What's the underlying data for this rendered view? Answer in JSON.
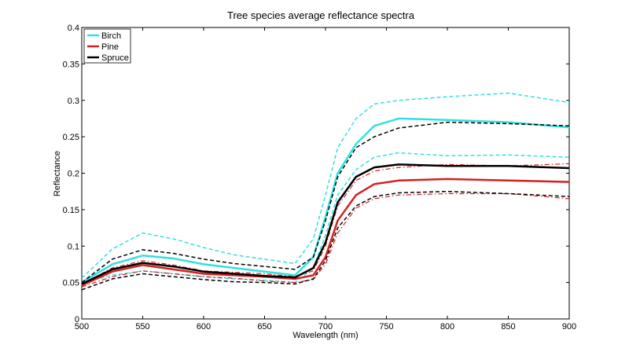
{
  "chart_data": {
    "type": "line",
    "title": "Tree species average reflectance spectra",
    "xlabel": "Wavelength (nm)",
    "ylabel": "Reflectance",
    "xlim": [
      500,
      900
    ],
    "ylim": [
      0,
      0.4
    ],
    "xticks": [
      500,
      550,
      600,
      650,
      700,
      750,
      800,
      850,
      900
    ],
    "yticks": [
      0,
      0.05,
      0.1,
      0.15,
      0.2,
      0.25,
      0.3,
      0.35,
      0.4
    ],
    "xtick_labels": [
      "500",
      "550",
      "600",
      "650",
      "700",
      "750",
      "800",
      "850",
      "900"
    ],
    "ytick_labels": [
      "0",
      "0.05",
      "0.1",
      "0.15",
      "0.2",
      "0.25",
      "0.3",
      "0.35",
      "0.4"
    ],
    "grid": false,
    "legend_position": "top-left",
    "x": [
      500,
      525,
      550,
      575,
      600,
      625,
      650,
      675,
      690,
      700,
      710,
      725,
      740,
      760,
      800,
      850,
      900
    ],
    "series": [
      {
        "name": "Birch",
        "color": "#33e0e0",
        "style": "solid",
        "width": 2.5,
        "values": [
          0.05,
          0.075,
          0.087,
          0.083,
          0.075,
          0.07,
          0.065,
          0.06,
          0.085,
          0.14,
          0.2,
          0.24,
          0.265,
          0.275,
          0.273,
          0.27,
          0.263
        ]
      },
      {
        "name": "",
        "color": "#33e0e0",
        "style": "dashed",
        "width": 1.5,
        "values": [
          0.056,
          0.096,
          0.118,
          0.11,
          0.098,
          0.088,
          0.082,
          0.076,
          0.11,
          0.17,
          0.235,
          0.275,
          0.295,
          0.3,
          0.305,
          0.31,
          0.297
        ]
      },
      {
        "name": "",
        "color": "#33e0e0",
        "style": "dashed",
        "width": 1.5,
        "values": [
          0.05,
          0.06,
          0.066,
          0.062,
          0.058,
          0.055,
          0.053,
          0.05,
          0.07,
          0.115,
          0.17,
          0.205,
          0.222,
          0.228,
          0.224,
          0.225,
          0.222
        ]
      },
      {
        "name": "Pine",
        "color": "#d42020",
        "style": "solid",
        "width": 2.5,
        "values": [
          0.046,
          0.065,
          0.074,
          0.068,
          0.062,
          0.06,
          0.058,
          0.055,
          0.06,
          0.085,
          0.135,
          0.17,
          0.185,
          0.19,
          0.192,
          0.19,
          0.188
        ]
      },
      {
        "name": "",
        "color": "#d42020",
        "style": "dashdot",
        "width": 1.2,
        "values": [
          0.048,
          0.07,
          0.08,
          0.074,
          0.066,
          0.064,
          0.062,
          0.058,
          0.066,
          0.1,
          0.155,
          0.19,
          0.203,
          0.208,
          0.212,
          0.21,
          0.213
        ]
      },
      {
        "name": "",
        "color": "#d42020",
        "style": "dashdot",
        "width": 1.2,
        "values": [
          0.044,
          0.058,
          0.066,
          0.062,
          0.058,
          0.056,
          0.052,
          0.05,
          0.054,
          0.075,
          0.118,
          0.152,
          0.165,
          0.17,
          0.172,
          0.172,
          0.165
        ]
      },
      {
        "name": "Spruce",
        "color": "#000000",
        "style": "solid",
        "width": 2.5,
        "values": [
          0.048,
          0.068,
          0.077,
          0.072,
          0.065,
          0.062,
          0.059,
          0.057,
          0.07,
          0.105,
          0.16,
          0.195,
          0.208,
          0.212,
          0.21,
          0.21,
          0.207
        ]
      },
      {
        "name": "",
        "color": "#000000",
        "style": "dashed",
        "width": 1.5,
        "values": [
          0.05,
          0.082,
          0.095,
          0.09,
          0.082,
          0.076,
          0.072,
          0.068,
          0.085,
          0.135,
          0.195,
          0.235,
          0.25,
          0.262,
          0.27,
          0.268,
          0.265
        ]
      },
      {
        "name": "",
        "color": "#000000",
        "style": "dashed",
        "width": 1.5,
        "values": [
          0.04,
          0.055,
          0.062,
          0.058,
          0.054,
          0.051,
          0.05,
          0.048,
          0.055,
          0.08,
          0.125,
          0.155,
          0.168,
          0.173,
          0.175,
          0.172,
          0.168
        ]
      }
    ]
  }
}
